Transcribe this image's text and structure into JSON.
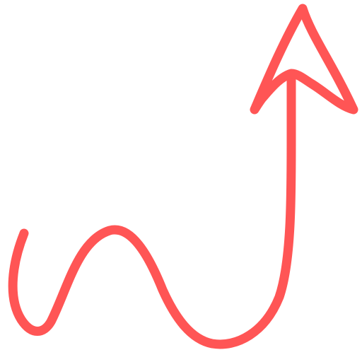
{
  "icon": {
    "name": "squiggly-arrow-up-icon",
    "description_color": "#ff5555"
  },
  "colors": {
    "stroke": "#ff5555",
    "background": "#ffffff"
  }
}
